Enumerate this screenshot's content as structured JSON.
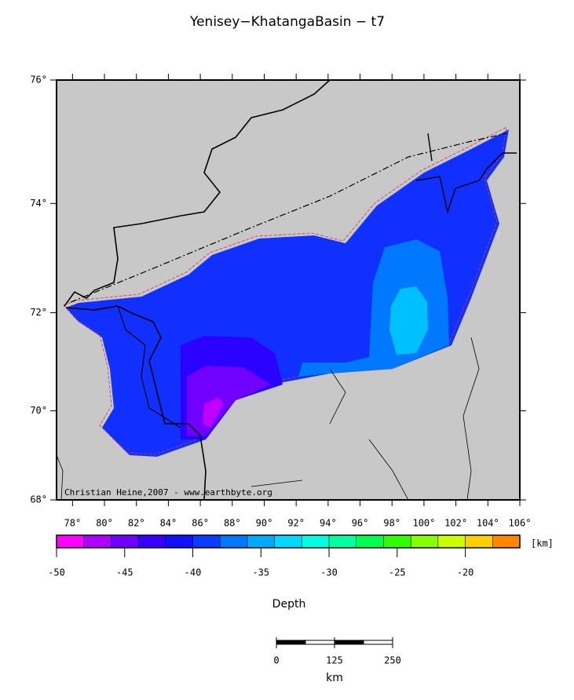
{
  "title": "Yenisey−KhatangaBasin − t7",
  "map": {
    "lat_ticks": [
      {
        "value": 68,
        "label": "68°"
      },
      {
        "value": 70,
        "label": "70°"
      },
      {
        "value": 72,
        "label": "72°"
      },
      {
        "value": 74,
        "label": "74°"
      },
      {
        "value": 76,
        "label": "76°"
      }
    ],
    "lon_ticks": [
      {
        "value": 78,
        "label": "78°"
      },
      {
        "value": 80,
        "label": "80°"
      },
      {
        "value": 82,
        "label": "82°"
      },
      {
        "value": 84,
        "label": "84°"
      },
      {
        "value": 86,
        "label": "86°"
      },
      {
        "value": 88,
        "label": "88°"
      },
      {
        "value": 90,
        "label": "90°"
      },
      {
        "value": 92,
        "label": "92°"
      },
      {
        "value": 94,
        "label": "94°"
      },
      {
        "value": 96,
        "label": "96°"
      },
      {
        "value": 98,
        "label": "98°"
      },
      {
        "value": 100,
        "label": "100°"
      },
      {
        "value": 102,
        "label": "102°"
      },
      {
        "value": 104,
        "label": "104°"
      },
      {
        "value": 106,
        "label": "106°"
      }
    ],
    "lat_range": [
      68,
      76
    ],
    "lon_range": [
      77,
      106
    ],
    "credit": "Christian Heine,2007 - www.earthbyte.org"
  },
  "colorbar": {
    "label": "Depth",
    "unit": "[km]",
    "range": [
      -50,
      -16
    ],
    "ticks": [
      -50,
      -45,
      -40,
      -35,
      -30,
      -25,
      -20
    ],
    "colors": [
      "#ff00ff",
      "#b000ff",
      "#7000ff",
      "#3800ff",
      "#1010ff",
      "#0a3cff",
      "#0078ff",
      "#00aaff",
      "#00d8ff",
      "#00ffe0",
      "#00ffa0",
      "#00ff50",
      "#30ff00",
      "#88ff00",
      "#ccff00",
      "#ffd000",
      "#ff8800"
    ]
  },
  "scale": {
    "ticks": [
      0,
      125,
      250
    ],
    "unit": "km"
  }
}
